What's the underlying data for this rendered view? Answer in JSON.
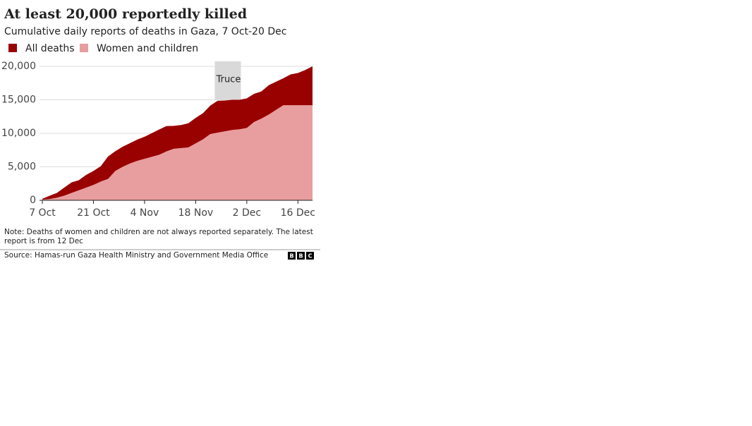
{
  "chart_data": {
    "type": "area",
    "title": "At least 20,000 reportedly killed",
    "subtitle": "Cumulative daily reports of deaths in Gaza, 7 Oct-20 Dec",
    "categories": [
      "7 Oct",
      null,
      null,
      null,
      null,
      null,
      null,
      "21 Oct",
      null,
      null,
      null,
      null,
      null,
      null,
      "4 Nov",
      null,
      null,
      null,
      null,
      null,
      null,
      "18 Nov",
      null,
      null,
      null,
      null,
      null,
      null,
      "2 Dec",
      null,
      null,
      null,
      null,
      null,
      null,
      "16 Dec",
      null,
      null
    ],
    "series": [
      {
        "name": "All deaths",
        "color": "#990000",
        "values": [
          230,
          687,
          1100,
          1900,
          2670,
          3000,
          3785,
          4385,
          5087,
          6546,
          7326,
          8005,
          8525,
          9061,
          9488,
          10022,
          10569,
          11078,
          11100,
          11240,
          11500,
          12300,
          13000,
          14128,
          14854,
          14900,
          15000,
          15000,
          15207,
          15899,
          16248,
          17177,
          17700,
          18205,
          18787,
          19000,
          19453,
          20000
        ]
      },
      {
        "name": "Women and children",
        "color": "#e89e9e",
        "values": [
          100,
          200,
          400,
          700,
          1100,
          1500,
          1900,
          2300,
          2800,
          3200,
          4400,
          5000,
          5500,
          5900,
          6200,
          6500,
          6800,
          7300,
          7700,
          7800,
          7900,
          8500,
          9100,
          9900,
          10100,
          10300,
          10500,
          10600,
          10800,
          11700,
          12200,
          12800,
          13500,
          14200,
          14200,
          14200,
          14200,
          14200
        ]
      }
    ],
    "ylim": [
      0,
      20000
    ],
    "yticks": [
      0,
      {
        "value": 5000,
        "label": "5,000"
      },
      {
        "value": 10000,
        "label": "10,000"
      },
      {
        "value": 15000,
        "label": "15,000"
      },
      {
        "value": 20000,
        "label": "20,000"
      }
    ],
    "grid": true,
    "annotations": [
      {
        "text": "Truce"
      }
    ],
    "note": "Note: Deaths of women and children are not always reported separately. The latest",
    "note_line2": "report is from 12 Dec",
    "source": "Source: Hamas-run Gaza Health Ministry and Government Media Office",
    "logo": [
      "B",
      "B",
      "C"
    ]
  }
}
